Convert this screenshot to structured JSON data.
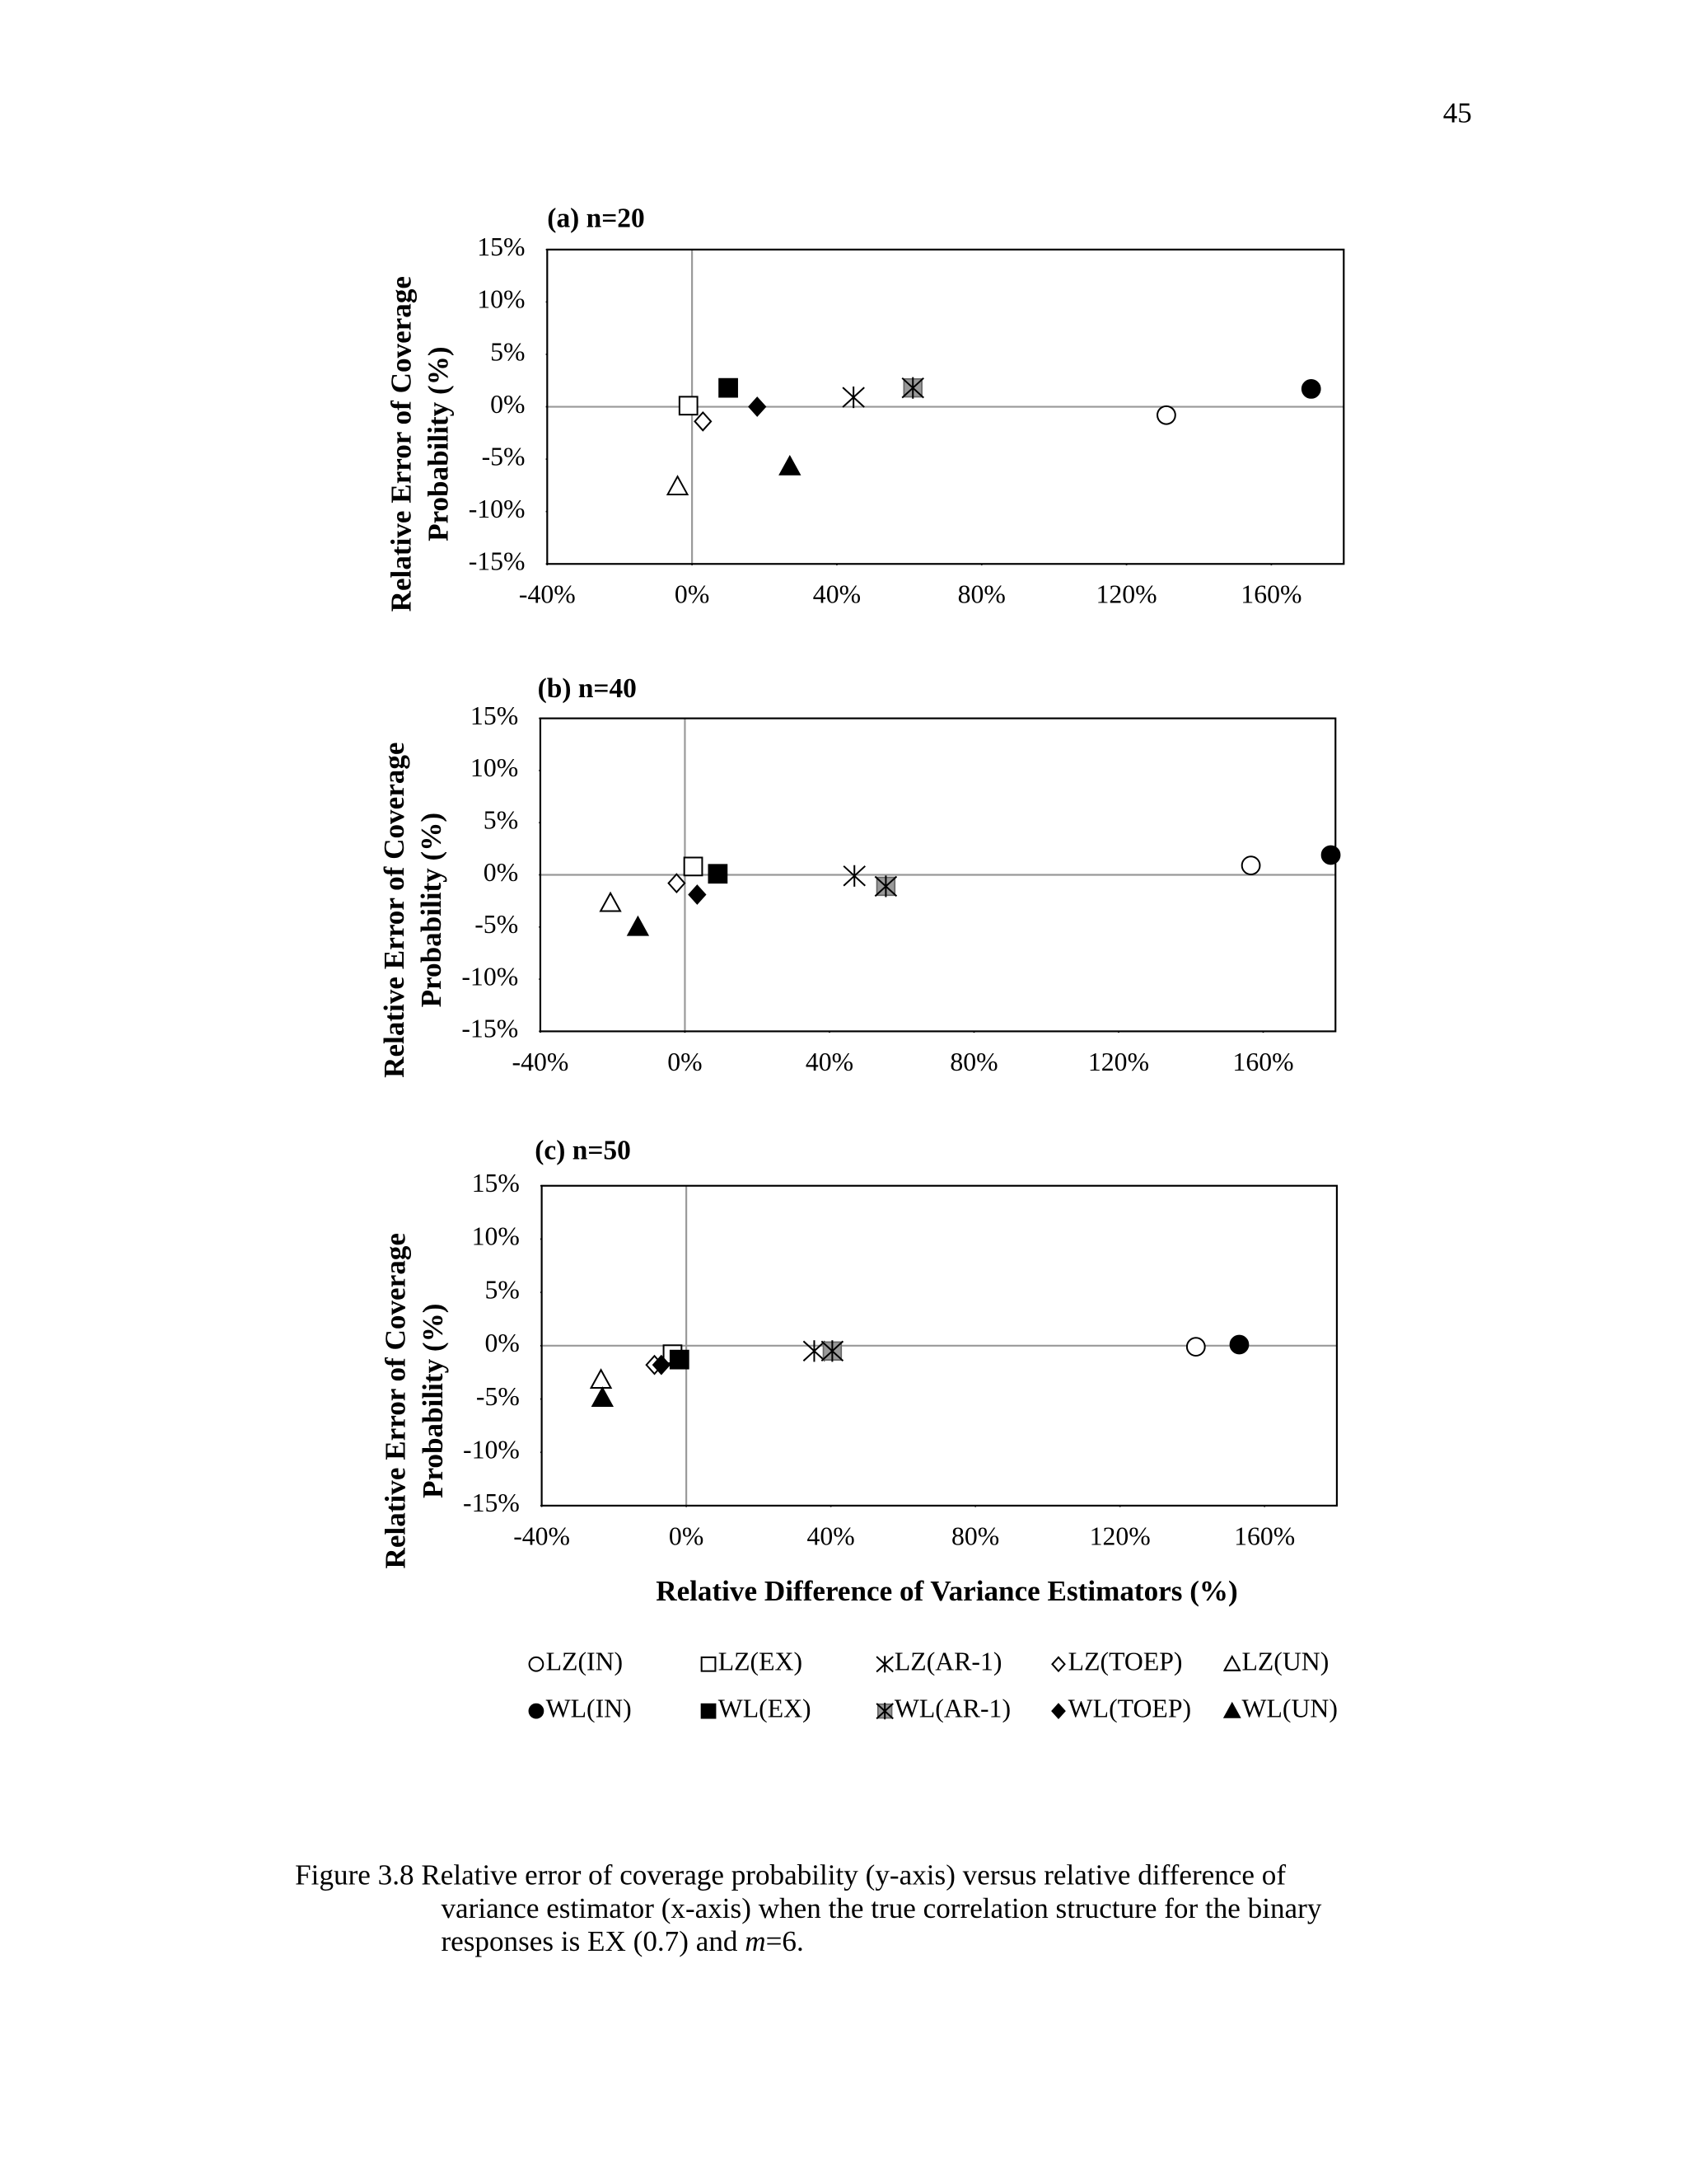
{
  "page_number": "45",
  "legend": {
    "names": [
      "LZ(IN)",
      "LZ(EX)",
      "LZ(AR-1)",
      "LZ(TOEP)",
      "LZ(UN)",
      "WL(IN)",
      "WL(EX)",
      "WL(AR-1)",
      "WL(TOEP)",
      "WL(UN)"
    ],
    "markers": [
      "circle",
      "square",
      "star",
      "diamond",
      "triangle",
      "circle",
      "square",
      "boxstar",
      "diamond",
      "triangle"
    ],
    "fills": [
      "#fff",
      "#fff",
      "none",
      "#fff",
      "#fff",
      "#000",
      "#000",
      "#999",
      "#000",
      "#000"
    ]
  },
  "x_label": "Relative Difference of Variance Estimators (%)",
  "caption": {
    "lines": [
      "Figure 3.8 Relative error of coverage probability (y-axis) versus relative difference of",
      "variance estimator (x-axis) when the true correlation structure for the binary"
    ],
    "last_line": [
      "responses is EX (0.7) and ",
      "m",
      "=6."
    ]
  },
  "chart_data": [
    {
      "type": "scatter",
      "title": "(a) n=20",
      "y_label": [
        "Relative Error of Coverage",
        "Probability (%)"
      ],
      "xlim": [
        -40,
        180
      ],
      "ylim": [
        -15,
        15
      ],
      "zero_lines": true,
      "xticks": [
        {
          "value": -40,
          "label": "-40%"
        },
        {
          "value": 0,
          "label": "0%"
        },
        {
          "value": 40,
          "label": "40%"
        },
        {
          "value": 80,
          "label": "80%"
        },
        {
          "value": 120,
          "label": "120%"
        },
        {
          "value": 160,
          "label": "160%"
        }
      ],
      "yticks": [
        {
          "value": 15,
          "label": "15%"
        },
        {
          "value": 10,
          "label": "10%"
        },
        {
          "value": 5,
          "label": "5%"
        },
        {
          "value": 0,
          "label": "0%"
        },
        {
          "value": -5,
          "label": "-5%"
        },
        {
          "value": -10,
          "label": "-10%"
        },
        {
          "value": -15,
          "label": "-15%"
        }
      ],
      "series": [
        {
          "x": [
            131
          ],
          "values": [
            -0.8
          ]
        },
        {
          "x": [
            -1
          ],
          "values": [
            0.1
          ]
        },
        {
          "x": [
            44.6
          ],
          "values": [
            0.9
          ]
        },
        {
          "x": [
            3
          ],
          "values": [
            -1.4
          ]
        },
        {
          "x": [
            -4
          ],
          "values": [
            -7.6
          ]
        },
        {
          "x": [
            171
          ],
          "values": [
            1.7
          ]
        },
        {
          "x": [
            10
          ],
          "values": [
            1.8
          ]
        },
        {
          "x": [
            61
          ],
          "values": [
            1.8
          ]
        },
        {
          "x": [
            18
          ],
          "values": [
            0
          ]
        },
        {
          "x": [
            27
          ],
          "values": [
            -5.7
          ]
        }
      ]
    },
    {
      "type": "scatter",
      "title": "(b) n=40",
      "y_label": [
        "Relative Error of Coverage",
        "Probability (%)"
      ],
      "xlim": [
        -40,
        180
      ],
      "ylim": [
        -15,
        15
      ],
      "zero_lines": true,
      "xticks": [
        {
          "value": -40,
          "label": "-40%"
        },
        {
          "value": 0,
          "label": "0%"
        },
        {
          "value": 40,
          "label": "40%"
        },
        {
          "value": 80,
          "label": "80%"
        },
        {
          "value": 120,
          "label": "120%"
        },
        {
          "value": 160,
          "label": "160%"
        }
      ],
      "yticks": [
        {
          "value": 15,
          "label": "15%"
        },
        {
          "value": 10,
          "label": "10%"
        },
        {
          "value": 5,
          "label": "5%"
        },
        {
          "value": 0,
          "label": "0%"
        },
        {
          "value": -5,
          "label": "-5%"
        },
        {
          "value": -10,
          "label": "-10%"
        },
        {
          "value": -15,
          "label": "-15%"
        }
      ],
      "series": [
        {
          "x": [
            156.6
          ],
          "values": [
            0.9
          ]
        },
        {
          "x": [
            2.3
          ],
          "values": [
            0.8
          ]
        },
        {
          "x": [
            46.9
          ],
          "values": [
            -0.1
          ]
        },
        {
          "x": [
            -2.3
          ],
          "values": [
            -0.8
          ]
        },
        {
          "x": [
            -20.6
          ],
          "values": [
            -2.7
          ]
        },
        {
          "x": [
            178.7
          ],
          "values": [
            1.9
          ]
        },
        {
          "x": [
            9.1
          ],
          "values": [
            0.1
          ]
        },
        {
          "x": [
            55.6
          ],
          "values": [
            -1.1
          ]
        },
        {
          "x": [
            3.4
          ],
          "values": [
            -1.9
          ]
        },
        {
          "x": [
            -13
          ],
          "values": [
            -5
          ]
        }
      ]
    },
    {
      "type": "scatter",
      "title": "(c) n=50",
      "y_label": [
        "Relative Error of Coverage",
        "Probability (%)"
      ],
      "xlim": [
        -40,
        180
      ],
      "ylim": [
        -15,
        15
      ],
      "zero_lines": true,
      "xticks": [
        {
          "value": -40,
          "label": "-40%"
        },
        {
          "value": 0,
          "label": "0%"
        },
        {
          "value": 40,
          "label": "40%"
        },
        {
          "value": 80,
          "label": "80%"
        },
        {
          "value": 120,
          "label": "120%"
        },
        {
          "value": 160,
          "label": "160%"
        }
      ],
      "yticks": [
        {
          "value": 15,
          "label": "15%"
        },
        {
          "value": 10,
          "label": "10%"
        },
        {
          "value": 5,
          "label": "5%"
        },
        {
          "value": 0,
          "label": "0%"
        },
        {
          "value": -5,
          "label": "-5%"
        },
        {
          "value": -10,
          "label": "-10%"
        },
        {
          "value": -15,
          "label": "-15%"
        }
      ],
      "series": [
        {
          "x": [
            141
          ],
          "values": [
            -0.1
          ]
        },
        {
          "x": [
            -3.8
          ],
          "values": [
            -0.8
          ]
        },
        {
          "x": [
            35.4
          ],
          "values": [
            -0.5
          ]
        },
        {
          "x": [
            -8.8
          ],
          "values": [
            -1.8
          ]
        },
        {
          "x": [
            -23.6
          ],
          "values": [
            -3.2
          ]
        },
        {
          "x": [
            153
          ],
          "values": [
            0.1
          ]
        },
        {
          "x": [
            -1.9
          ],
          "values": [
            -1.3
          ]
        },
        {
          "x": [
            40.4
          ],
          "values": [
            -0.5
          ]
        },
        {
          "x": [
            -6.9
          ],
          "values": [
            -1.8
          ]
        },
        {
          "x": [
            -23.2
          ],
          "values": [
            -4.9
          ]
        }
      ]
    }
  ]
}
